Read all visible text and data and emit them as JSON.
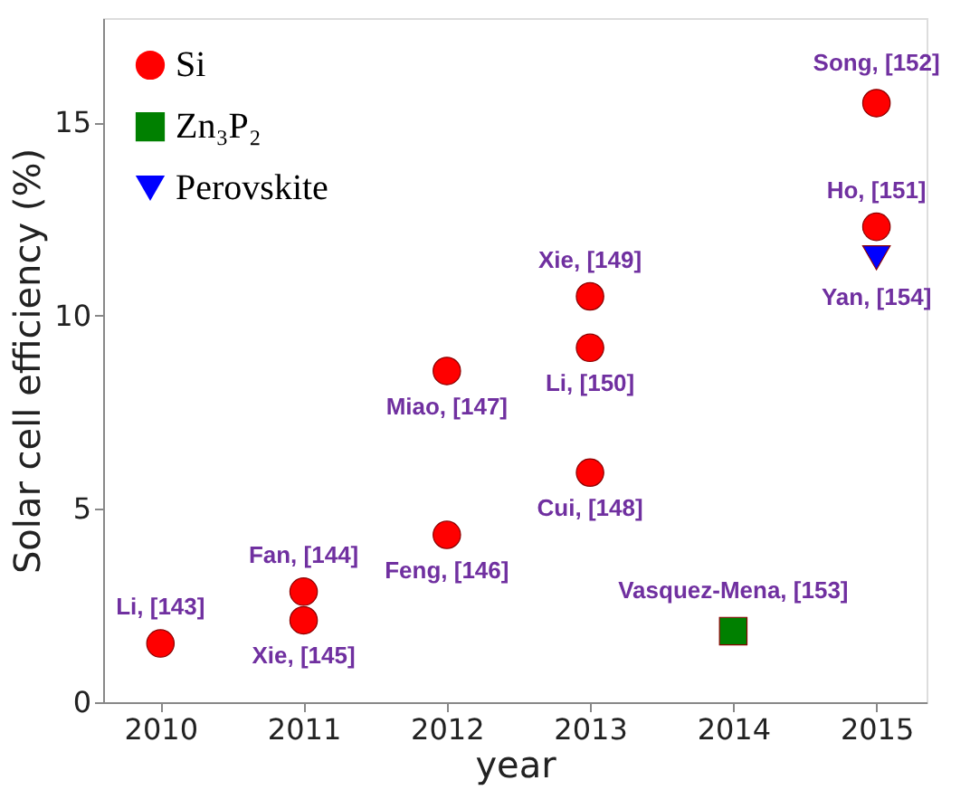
{
  "chart_data": {
    "type": "scatter",
    "xlabel": "year",
    "ylabel": "Solar cell efficiency (%)",
    "xlim": [
      2009.6,
      2015.35
    ],
    "xticks": [
      2010,
      2011,
      2012,
      2013,
      2014,
      2015
    ],
    "ylim": [
      0,
      17.7
    ],
    "yticks": [
      0,
      5,
      10,
      15
    ],
    "grid": false,
    "legend": "top left",
    "series": [
      {
        "name": "Si",
        "color": "#ff0000",
        "marker": "circle",
        "x": [
          2010,
          2011,
          2011,
          2012,
          2012,
          2013,
          2013,
          2013,
          2015,
          2015
        ],
        "values": [
          1.52,
          2.86,
          2.12,
          4.33,
          8.57,
          5.94,
          10.5,
          9.17,
          15.5,
          12.3
        ]
      },
      {
        "name": "Zn₃P₂",
        "color": "#008000",
        "marker": "square",
        "x": [
          2014
        ],
        "values": [
          1.84
        ]
      },
      {
        "name": "Perovskite",
        "color": "#0000ff",
        "marker": "triangle",
        "x": [
          2015
        ],
        "values": [
          11.5
        ]
      }
    ],
    "annotations": [
      {
        "text": "Li, [143]",
        "x": 2010,
        "y": 1.52
      },
      {
        "text": "Fan, [144]",
        "x": 2011,
        "y": 2.86
      },
      {
        "text": "Xie, [145]",
        "x": 2011,
        "y": 2.12
      },
      {
        "text": "Feng, [146]",
        "x": 2012,
        "y": 4.33
      },
      {
        "text": "Miao, [147]",
        "x": 2012,
        "y": 8.57
      },
      {
        "text": "Cui, [148]",
        "x": 2013,
        "y": 5.94
      },
      {
        "text": "Xie, [149]",
        "x": 2013,
        "y": 10.5
      },
      {
        "text": "Li, [150]",
        "x": 2013,
        "y": 9.17
      },
      {
        "text": "Song, [152]",
        "x": 2015,
        "y": 15.5
      },
      {
        "text": "Ho, [151]",
        "x": 2015,
        "y": 12.3
      },
      {
        "text": "Vasquez-Mena, [153]",
        "x": 2014,
        "y": 1.84
      },
      {
        "text": "Yan, [154]",
        "x": 2015,
        "y": 11.5
      }
    ]
  }
}
